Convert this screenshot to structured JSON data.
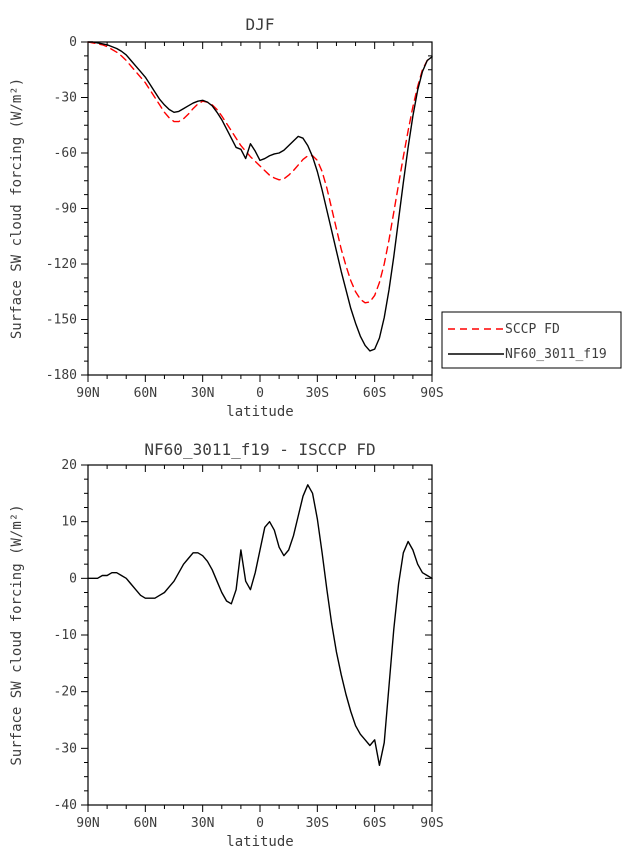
{
  "page": {
    "background": "#ffffff"
  },
  "chart_data": [
    {
      "id": "top",
      "type": "line",
      "title": "DJF",
      "xlabel": "latitude",
      "ylabel": "Surface SW cloud forcing (W/m²)",
      "xlim": [
        90,
        -90
      ],
      "ylim": [
        -180,
        0
      ],
      "xticks": [
        {
          "value": 90,
          "label": "90N"
        },
        {
          "value": 60,
          "label": "60N"
        },
        {
          "value": 30,
          "label": "30N"
        },
        {
          "value": 0,
          "label": "0"
        },
        {
          "value": -30,
          "label": "30S"
        },
        {
          "value": -60,
          "label": "60S"
        },
        {
          "value": -90,
          "label": "90S"
        }
      ],
      "yticks": [
        0,
        -30,
        -60,
        -90,
        -120,
        -150,
        -180
      ],
      "x_minor_step": 10,
      "y_minor_step": 7.5,
      "grid": false,
      "legend": {
        "visible": true,
        "position": "outside-right-bottom",
        "entries": [
          "SCCP FD",
          "NF60_3011_f19"
        ]
      },
      "x": [
        90,
        87.5,
        85,
        82.5,
        80,
        77.5,
        75,
        72.5,
        70,
        67.5,
        65,
        62.5,
        60,
        57.5,
        55,
        52.5,
        50,
        47.5,
        45,
        42.5,
        40,
        37.5,
        35,
        32.5,
        30,
        27.5,
        25,
        22.5,
        20,
        17.5,
        15,
        12.5,
        10,
        7.5,
        5,
        2.5,
        0,
        -2.5,
        -5,
        -7.5,
        -10,
        -12.5,
        -15,
        -17.5,
        -20,
        -22.5,
        -25,
        -27.5,
        -30,
        -32.5,
        -35,
        -37.5,
        -40,
        -42.5,
        -45,
        -47.5,
        -50,
        -52.5,
        -55,
        -57.5,
        -60,
        -62.5,
        -65,
        -67.5,
        -70,
        -72.5,
        -75,
        -77.5,
        -80,
        -82.5,
        -85,
        -87.5,
        -90
      ],
      "series": [
        {
          "name": "SCCP FD",
          "color": "#ff0000",
          "dash": "7,5",
          "width": 1.4,
          "values": [
            0,
            -0.5,
            -1,
            -1.5,
            -2.5,
            -4,
            -5.5,
            -7.5,
            -10,
            -13,
            -16,
            -19,
            -22,
            -26,
            -30,
            -34,
            -38,
            -41,
            -43,
            -43,
            -41.5,
            -39,
            -36,
            -33.5,
            -32,
            -32.5,
            -34,
            -36.5,
            -40,
            -44,
            -48,
            -52,
            -56,
            -59,
            -62,
            -64.5,
            -67,
            -69.5,
            -72,
            -73.5,
            -74.5,
            -74,
            -72,
            -69.5,
            -66.5,
            -63.5,
            -61.5,
            -61.5,
            -64,
            -70,
            -79,
            -90,
            -101,
            -112,
            -121,
            -129,
            -135,
            -139,
            -141,
            -140.5,
            -137,
            -130,
            -120,
            -107,
            -92,
            -77,
            -62,
            -48,
            -35,
            -24,
            -15,
            -10,
            -8
          ]
        },
        {
          "name": "NF60_3011_f19",
          "color": "#000000",
          "dash": "",
          "width": 1.4,
          "values": [
            0,
            0,
            -0.5,
            -1,
            -1.5,
            -2.5,
            -3.5,
            -5,
            -7,
            -10,
            -13,
            -16,
            -19,
            -23,
            -27,
            -31,
            -34,
            -36.5,
            -38,
            -37.5,
            -36,
            -34.5,
            -33,
            -32,
            -31.5,
            -32.5,
            -34.5,
            -38,
            -42,
            -47,
            -52,
            -57,
            -58,
            -63,
            -55,
            -59,
            -64,
            -63,
            -61.5,
            -60.5,
            -60,
            -58.5,
            -56,
            -53.5,
            -51,
            -52,
            -56,
            -62,
            -70,
            -80,
            -91,
            -102,
            -113,
            -124,
            -134,
            -144,
            -152,
            -159,
            -164,
            -167,
            -166,
            -160,
            -149,
            -134,
            -116,
            -96,
            -76,
            -57,
            -40,
            -26,
            -16,
            -10,
            -8
          ]
        }
      ]
    },
    {
      "id": "bottom",
      "type": "line",
      "title": "NF60_3011_f19 - ISCCP FD",
      "xlabel": "latitude",
      "ylabel": "Surface SW cloud forcing (W/m²)",
      "xlim": [
        90,
        -90
      ],
      "ylim": [
        -40,
        20
      ],
      "xticks": [
        {
          "value": 90,
          "label": "90N"
        },
        {
          "value": 60,
          "label": "60N"
        },
        {
          "value": 30,
          "label": "30N"
        },
        {
          "value": 0,
          "label": "0"
        },
        {
          "value": -30,
          "label": "30S"
        },
        {
          "value": -60,
          "label": "60S"
        },
        {
          "value": -90,
          "label": "90S"
        }
      ],
      "yticks": [
        20,
        10,
        0,
        -10,
        -20,
        -30,
        -40
      ],
      "x_minor_step": 10,
      "y_minor_step": 2.5,
      "grid": false,
      "legend": {
        "visible": false,
        "entries": []
      },
      "x": [
        90,
        87.5,
        85,
        82.5,
        80,
        77.5,
        75,
        72.5,
        70,
        67.5,
        65,
        62.5,
        60,
        57.5,
        55,
        52.5,
        50,
        47.5,
        45,
        42.5,
        40,
        37.5,
        35,
        32.5,
        30,
        27.5,
        25,
        22.5,
        20,
        17.5,
        15,
        12.5,
        10,
        7.5,
        5,
        2.5,
        0,
        -2.5,
        -5,
        -7.5,
        -10,
        -12.5,
        -15,
        -17.5,
        -20,
        -22.5,
        -25,
        -27.5,
        -30,
        -32.5,
        -35,
        -37.5,
        -40,
        -42.5,
        -45,
        -47.5,
        -50,
        -52.5,
        -55,
        -57.5,
        -60,
        -62.5,
        -65,
        -67.5,
        -70,
        -72.5,
        -75,
        -77.5,
        -80,
        -82.5,
        -85,
        -87.5,
        -90
      ],
      "series": [
        {
          "name": "NF60_3011_f19 - ISCCP FD",
          "color": "#000000",
          "dash": "",
          "width": 1.4,
          "values": [
            0,
            0,
            0,
            0.5,
            0.5,
            1,
            1,
            0.5,
            0,
            -1,
            -2,
            -3,
            -3.5,
            -3.5,
            -3.5,
            -3,
            -2.5,
            -1.5,
            -0.5,
            1,
            2.5,
            3.5,
            4.5,
            4.5,
            4,
            3,
            1.5,
            -0.5,
            -2.5,
            -4,
            -4.5,
            -2,
            5,
            -0.5,
            -2,
            1,
            5,
            9,
            10,
            8.5,
            5.5,
            4,
            5,
            7.5,
            11,
            14.5,
            16.5,
            15,
            10.5,
            4.5,
            -2,
            -8,
            -13,
            -17,
            -20.5,
            -23.5,
            -26,
            -27.5,
            -28.5,
            -29.5,
            -28.5,
            -33,
            -29,
            -19,
            -9,
            -1,
            4.5,
            6.5,
            5,
            2.5,
            1,
            0.5,
            0
          ]
        }
      ]
    }
  ]
}
